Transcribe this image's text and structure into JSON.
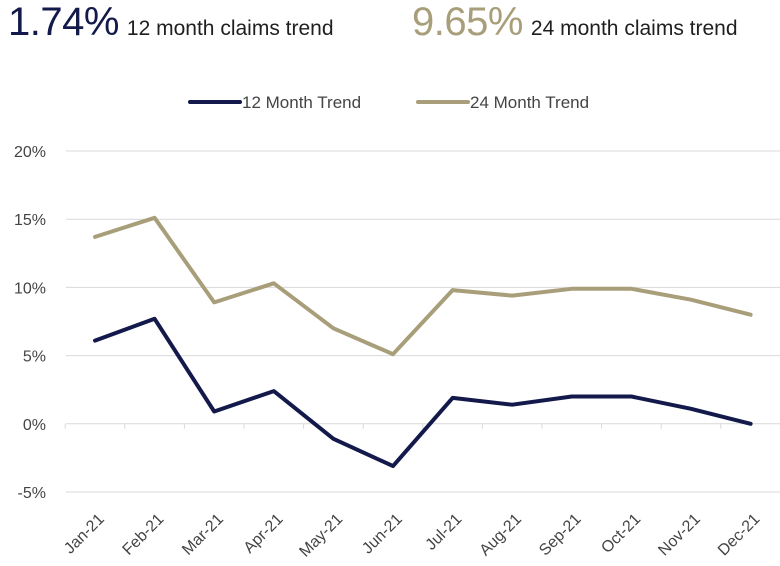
{
  "header": {
    "kpis": [
      {
        "value": "1.74%",
        "label": "12 month claims trend",
        "color": "#13194a"
      },
      {
        "value": "9.65%",
        "label": "24 month claims trend",
        "color": "#a89e7a"
      }
    ]
  },
  "chart_data": {
    "type": "line",
    "title": "",
    "xlabel": "",
    "ylabel": "",
    "categories": [
      "Jan-21",
      "Feb-21",
      "Mar-21",
      "Apr-21",
      "May-21",
      "Jun-21",
      "Jul-21",
      "Aug-21",
      "Sep-21",
      "Oct-21",
      "Nov-21",
      "Dec-21"
    ],
    "ylim": [
      -5,
      20
    ],
    "yticks": [
      -5,
      0,
      5,
      10,
      15,
      20
    ],
    "ytick_labels": [
      "-5%",
      "0%",
      "5%",
      "10%",
      "15%",
      "20%"
    ],
    "grid": true,
    "legend_position": "top-center",
    "series": [
      {
        "name": "12 Month Trend",
        "color": "#13194a",
        "values": [
          6.1,
          7.7,
          0.9,
          2.4,
          -1.1,
          -3.1,
          1.9,
          1.4,
          2.0,
          2.0,
          1.1,
          0.0
        ]
      },
      {
        "name": "24 Month Trend",
        "color": "#a89e7a",
        "values": [
          13.7,
          15.1,
          8.9,
          10.3,
          7.0,
          5.1,
          9.8,
          9.4,
          9.9,
          9.9,
          9.1,
          8.0
        ]
      }
    ]
  }
}
